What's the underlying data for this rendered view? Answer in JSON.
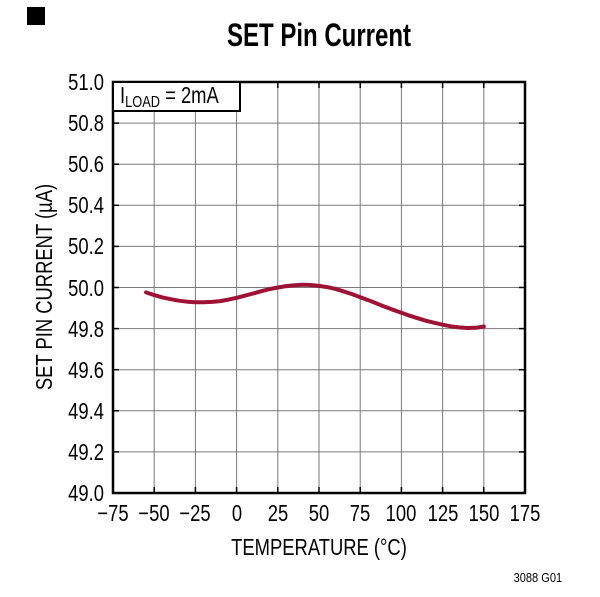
{
  "page": {
    "title": "SET Pin Current",
    "footer_code": "3088 G01",
    "annotation": {
      "prefix": "I",
      "subscript": "LOAD",
      "suffix": " = 2mA"
    }
  },
  "chart_data": {
    "type": "line",
    "title": "SET Pin Current",
    "xlabel": "TEMPERATURE (°C)",
    "ylabel": "SET PIN CURRENT (µA)",
    "xlim": [
      -75,
      175
    ],
    "ylim": [
      49.0,
      51.0
    ],
    "grid": true,
    "legend": "none",
    "annotation": "ILOAD = 2mA",
    "xticks": [
      {
        "label": "−75",
        "value": -75
      },
      {
        "label": "−50",
        "value": -50
      },
      {
        "label": "−25",
        "value": -25
      },
      {
        "label": "0",
        "value": 0
      },
      {
        "label": "25",
        "value": 25
      },
      {
        "label": "50",
        "value": 50
      },
      {
        "label": "75",
        "value": 75
      },
      {
        "label": "100",
        "value": 100
      },
      {
        "label": "125",
        "value": 125
      },
      {
        "label": "150",
        "value": 150
      },
      {
        "label": "175",
        "value": 175
      }
    ],
    "yticks": [
      {
        "label": "51.0",
        "value": 51.0
      },
      {
        "label": "50.8",
        "value": 50.8
      },
      {
        "label": "50.6",
        "value": 50.6
      },
      {
        "label": "50.4",
        "value": 50.4
      },
      {
        "label": "50.2",
        "value": 50.2
      },
      {
        "label": "50.0",
        "value": 50.0
      },
      {
        "label": "49.8",
        "value": 49.8
      },
      {
        "label": "49.6",
        "value": 49.6
      },
      {
        "label": "49.4",
        "value": 49.4
      },
      {
        "label": "49.2",
        "value": 49.2
      },
      {
        "label": "49.0",
        "value": 49.0
      }
    ],
    "series": [
      {
        "name": "SET pin current at ILOAD = 2mA",
        "x": [
          -55,
          -50,
          -45,
          -40,
          -35,
          -30,
          -25,
          -20,
          -15,
          -10,
          -5,
          0,
          5,
          10,
          15,
          20,
          25,
          30,
          35,
          40,
          45,
          50,
          55,
          60,
          65,
          70,
          75,
          80,
          85,
          90,
          95,
          100,
          105,
          110,
          115,
          120,
          125,
          130,
          135,
          140,
          145,
          150
        ],
        "y": [
          49.976,
          49.963,
          49.952,
          49.943,
          49.936,
          49.931,
          49.928,
          49.928,
          49.93,
          49.934,
          49.941,
          49.95,
          49.96,
          49.971,
          49.982,
          49.992,
          50.0,
          50.007,
          50.011,
          50.013,
          50.012,
          50.008,
          50.002,
          49.993,
          49.981,
          49.968,
          49.953,
          49.938,
          49.922,
          49.906,
          49.891,
          49.877,
          49.863,
          49.85,
          49.838,
          49.828,
          49.819,
          49.811,
          49.806,
          49.803,
          49.804,
          49.81
        ]
      }
    ],
    "colors": {
      "curve": "#A01235",
      "grid": "#7A7A7A",
      "frame": "#000000",
      "text": "#000000",
      "background": "#FFFFFF"
    }
  }
}
